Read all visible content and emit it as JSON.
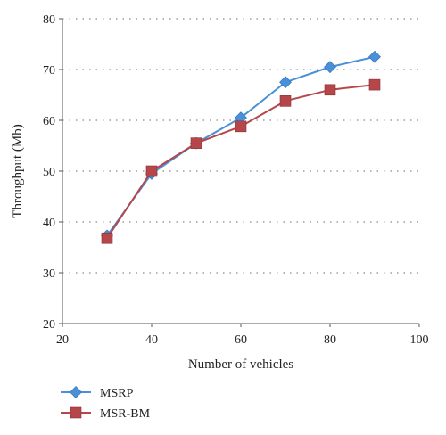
{
  "chart_data": {
    "type": "line",
    "title": "",
    "xlabel": "Number of vehicles",
    "ylabel": "Throughput (Mb)",
    "xlim": [
      20,
      100
    ],
    "ylim": [
      20,
      80
    ],
    "xticks": [
      20,
      40,
      60,
      80,
      100
    ],
    "yticks": [
      20,
      30,
      40,
      50,
      60,
      70,
      80
    ],
    "grid": "horizontal dotted",
    "legend_position": "bottom-left",
    "x": [
      30,
      40,
      50,
      60,
      70,
      80,
      90
    ],
    "series": [
      {
        "name": "MSRP",
        "values": [
          37.3,
          49.5,
          55.5,
          60.5,
          67.5,
          70.5,
          72.5
        ],
        "color": "#4a90d9",
        "marker": "diamond"
      },
      {
        "name": "MSR-BM",
        "values": [
          36.8,
          50.0,
          55.5,
          58.8,
          63.8,
          66.0,
          67.0
        ],
        "color": "#b5474a",
        "marker": "square"
      }
    ]
  }
}
